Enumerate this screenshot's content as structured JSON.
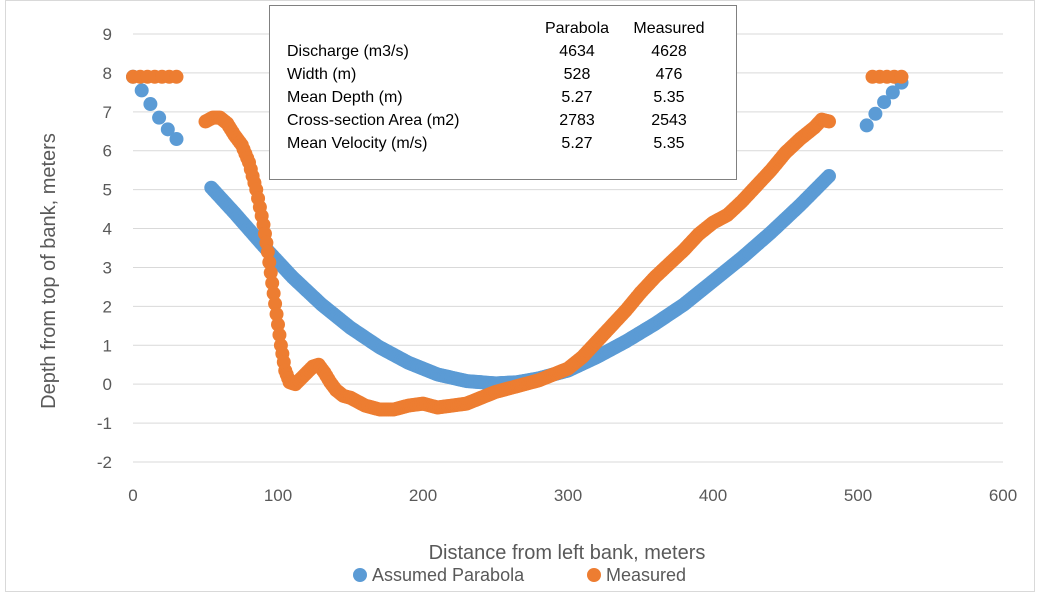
{
  "chart_data": {
    "type": "scatter",
    "title": "",
    "xlabel": "Distance from left bank, meters",
    "ylabel": "Depth from top of bank, meters",
    "xlim": [
      0,
      600
    ],
    "ylim": [
      -2,
      9
    ],
    "xticks": [
      "0",
      "100",
      "200",
      "300",
      "400",
      "500",
      "600"
    ],
    "yticks": [
      "-2",
      "-1",
      "0",
      "1",
      "2",
      "3",
      "4",
      "5",
      "6",
      "7",
      "8",
      "9"
    ],
    "grid": "horizontal",
    "legend_position": "bottom",
    "colors": {
      "parabola": "#5b9bd5",
      "measured": "#ed7d31"
    },
    "series": [
      {
        "name": "Assumed Parabola",
        "color": "#5b9bd5",
        "x": [
          0,
          6,
          12,
          18,
          24,
          30,
          54,
          70,
          90,
          110,
          130,
          150,
          170,
          190,
          210,
          230,
          250,
          265,
          280,
          300,
          320,
          340,
          360,
          380,
          400,
          420,
          440,
          460,
          480,
          506,
          512,
          518,
          524,
          530
        ],
        "y": [
          7.9,
          7.55,
          7.2,
          6.85,
          6.55,
          6.3,
          5.05,
          4.4,
          3.55,
          2.75,
          2.05,
          1.45,
          0.95,
          0.55,
          0.25,
          0.08,
          0.02,
          0.05,
          0.15,
          0.35,
          0.7,
          1.1,
          1.55,
          2.05,
          2.65,
          3.25,
          3.9,
          4.6,
          5.35,
          6.65,
          6.95,
          7.25,
          7.5,
          7.75
        ]
      },
      {
        "name": "Measured",
        "color": "#ed7d31",
        "x": [
          0,
          5,
          10,
          15,
          20,
          25,
          30,
          50,
          55,
          60,
          65,
          70,
          75,
          80,
          85,
          90,
          93,
          96,
          99,
          102,
          105,
          108,
          112,
          116,
          120,
          124,
          128,
          132,
          136,
          140,
          145,
          150,
          160,
          170,
          180,
          190,
          200,
          210,
          220,
          230,
          240,
          250,
          260,
          270,
          280,
          290,
          300,
          310,
          320,
          330,
          340,
          350,
          360,
          370,
          380,
          390,
          400,
          410,
          420,
          430,
          440,
          450,
          460,
          470,
          475,
          480,
          510,
          515,
          520,
          525,
          530
        ],
        "y": [
          7.9,
          7.9,
          7.9,
          7.9,
          7.9,
          7.9,
          7.9,
          6.75,
          6.85,
          6.85,
          6.7,
          6.4,
          6.15,
          5.7,
          5.0,
          4.1,
          3.4,
          2.6,
          1.8,
          1.0,
          0.35,
          0.05,
          0.0,
          0.15,
          0.3,
          0.45,
          0.5,
          0.3,
          0.05,
          -0.15,
          -0.3,
          -0.35,
          -0.55,
          -0.65,
          -0.65,
          -0.55,
          -0.5,
          -0.6,
          -0.55,
          -0.5,
          -0.35,
          -0.2,
          -0.1,
          0.0,
          0.1,
          0.25,
          0.4,
          0.7,
          1.1,
          1.5,
          1.9,
          2.35,
          2.75,
          3.1,
          3.45,
          3.85,
          4.15,
          4.35,
          4.7,
          5.1,
          5.5,
          5.95,
          6.3,
          6.6,
          6.8,
          6.75,
          7.9,
          7.9,
          7.9,
          7.9,
          7.9
        ]
      }
    ],
    "annotation_table": {
      "columns": [
        "",
        "Parabola",
        "Measured"
      ],
      "rows": [
        [
          "Discharge (m3/s)",
          "4634",
          "4628"
        ],
        [
          "Width (m)",
          "528",
          "476"
        ],
        [
          "Mean Depth (m)",
          "5.27",
          "5.35"
        ],
        [
          "Cross-section Area (m2)",
          "2783",
          "2543"
        ],
        [
          "Mean Velocity (m/s)",
          "5.27",
          "5.35"
        ]
      ]
    }
  }
}
